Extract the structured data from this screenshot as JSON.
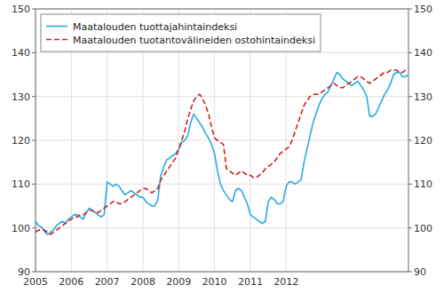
{
  "chart_data": {
    "type": "line",
    "title": "",
    "categories": [
      "2005",
      null,
      null,
      null,
      null,
      null,
      null,
      null,
      null,
      null,
      null,
      null,
      "2006",
      null,
      null,
      null,
      null,
      null,
      null,
      null,
      null,
      null,
      null,
      null,
      "2007",
      null,
      null,
      null,
      null,
      null,
      null,
      null,
      null,
      null,
      null,
      null,
      "2008",
      null,
      null,
      null,
      null,
      null,
      null,
      null,
      null,
      null,
      null,
      null,
      "2009",
      null,
      null,
      null,
      null,
      null,
      null,
      null,
      null,
      null,
      null,
      null,
      "2010",
      null,
      null,
      null,
      null,
      null,
      null,
      null,
      null,
      null,
      null,
      null,
      "2011",
      null,
      null,
      null,
      null,
      null,
      null,
      null,
      null,
      null,
      null,
      null,
      "2012",
      null,
      null,
      null,
      null,
      null,
      null,
      null,
      null,
      null,
      null,
      null,
      null,
      null,
      null,
      null,
      null,
      null,
      null,
      null,
      null,
      null,
      null,
      null,
      null,
      null,
      null,
      null,
      null,
      null,
      null,
      null,
      null,
      null,
      null,
      null,
      null,
      null,
      null,
      null,
      null,
      null
    ],
    "series": [
      {
        "name": "Maatalouden tuottajahintaindeksi",
        "color": "#29ABE2",
        "line_style": "solid",
        "values": [
          101.5,
          100.5,
          100.2,
          99.2,
          98.5,
          99.0,
          99.5,
          100.5,
          101.0,
          101.5,
          101.0,
          102.0,
          102.5,
          103.0,
          103.0,
          102.5,
          102.0,
          103.5,
          104.5,
          104.0,
          103.5,
          103.0,
          102.5,
          103.0,
          110.5,
          110.0,
          109.5,
          110.0,
          109.5,
          108.5,
          107.5,
          108.0,
          108.5,
          108.0,
          107.5,
          107.0,
          107.0,
          106.0,
          105.5,
          105.0,
          105.0,
          106.5,
          112.0,
          114.0,
          115.5,
          116.0,
          116.5,
          117.0,
          118.0,
          119.5,
          120.0,
          121.0,
          124.0,
          126.0,
          125.0,
          124.0,
          123.0,
          121.5,
          120.5,
          119.0,
          117.0,
          113.0,
          110.0,
          108.5,
          107.5,
          106.5,
          106.0,
          108.5,
          109.0,
          108.5,
          107.0,
          105.5,
          103.0,
          102.5,
          102.0,
          101.5,
          101.0,
          101.5,
          106.0,
          107.0,
          106.5,
          105.5,
          105.5,
          106.0,
          109.5,
          110.5,
          110.5,
          110.0,
          110.5,
          111.0,
          115.0,
          118.0,
          121.0,
          124.0,
          126.0,
          128.0,
          129.5,
          130.5,
          131.0,
          132.5,
          134.0,
          135.5,
          135.0,
          134.0,
          133.5,
          133.0,
          132.5,
          133.0,
          133.5,
          132.5,
          131.5,
          130.0,
          125.5,
          125.5,
          126.0,
          127.5,
          129.0,
          130.5,
          131.5,
          133.0,
          135.0,
          135.5,
          135.5,
          134.5,
          134.5,
          135.0
        ]
      },
      {
        "name": "Maatalouden tuotantovälineiden ostohintaindeksi",
        "color": "#CC2222",
        "line_style": "dashed",
        "axis": "y2",
        "values": [
          99.0,
          99.5,
          99.5,
          99.5,
          99.0,
          98.5,
          99.0,
          99.5,
          100.0,
          100.5,
          101.0,
          101.5,
          102.0,
          102.5,
          102.5,
          103.0,
          103.0,
          103.5,
          104.0,
          104.0,
          103.5,
          103.5,
          104.0,
          104.5,
          105.0,
          105.5,
          106.0,
          106.0,
          105.5,
          105.5,
          106.0,
          106.5,
          107.0,
          107.5,
          108.0,
          108.5,
          109.0,
          109.0,
          108.5,
          108.0,
          108.5,
          109.0,
          111.0,
          112.0,
          113.0,
          114.0,
          115.0,
          116.0,
          118.0,
          120.0,
          122.0,
          125.0,
          127.0,
          129.0,
          130.0,
          130.5,
          129.5,
          128.0,
          126.0,
          123.0,
          120.5,
          120.0,
          119.5,
          119.0,
          113.5,
          113.0,
          112.5,
          112.0,
          112.5,
          113.0,
          112.5,
          112.0,
          112.0,
          111.5,
          111.5,
          112.0,
          112.5,
          113.5,
          114.0,
          114.5,
          115.0,
          116.0,
          117.0,
          117.5,
          118.0,
          118.5,
          120.0,
          122.0,
          124.0,
          126.0,
          128.0,
          129.0,
          130.0,
          130.5,
          130.5,
          130.5,
          131.0,
          131.5,
          132.0,
          132.5,
          133.0,
          132.5,
          132.0,
          132.0,
          132.5,
          133.0,
          133.5,
          134.0,
          134.5,
          134.5,
          134.0,
          133.5,
          133.0,
          133.5,
          134.0,
          134.5,
          135.0,
          135.5,
          135.5,
          136.0,
          136.0,
          136.0,
          135.5,
          135.5,
          136.0,
          136.5
        ]
      }
    ],
    "ylim": [
      90,
      150
    ],
    "yticks": [
      90,
      100,
      110,
      120,
      130,
      140,
      150
    ],
    "y2lim": [
      90,
      150
    ],
    "y2ticks": [
      90,
      100,
      110,
      120,
      130,
      140,
      150
    ],
    "grid": true,
    "legend": "top-left"
  }
}
